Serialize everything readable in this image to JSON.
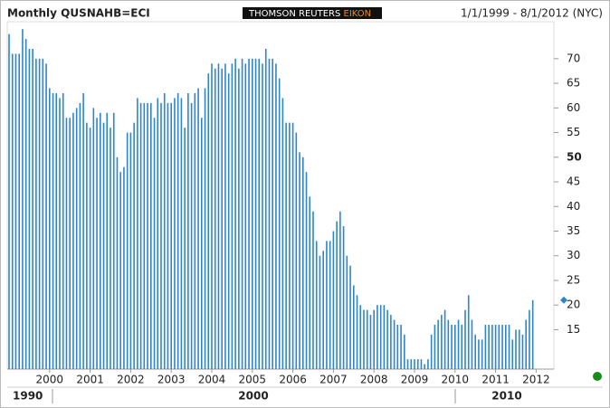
{
  "chart_data": {
    "type": "bar",
    "title": "Monthly QUSNAHB=ECI",
    "brand": [
      "THOMSON REUTERS ",
      "EIKON"
    ],
    "date_range": "1/1/1999 - 8/1/2012 (NYC)",
    "categories": [
      null,
      null,
      null,
      null,
      null,
      null,
      null,
      null,
      null,
      null,
      null,
      null,
      "2000",
      null,
      null,
      null,
      null,
      null,
      null,
      null,
      null,
      null,
      null,
      null,
      "2001",
      null,
      null,
      null,
      null,
      null,
      null,
      null,
      null,
      null,
      null,
      null,
      "2002",
      null,
      null,
      null,
      null,
      null,
      null,
      null,
      null,
      null,
      null,
      null,
      "2003",
      null,
      null,
      null,
      null,
      null,
      null,
      null,
      null,
      null,
      null,
      null,
      "2004",
      null,
      null,
      null,
      null,
      null,
      null,
      null,
      null,
      null,
      null,
      null,
      "2005",
      null,
      null,
      null,
      null,
      null,
      null,
      null,
      null,
      null,
      null,
      null,
      "2006",
      null,
      null,
      null,
      null,
      null,
      null,
      null,
      null,
      null,
      null,
      null,
      "2007",
      null,
      null,
      null,
      null,
      null,
      null,
      null,
      null,
      null,
      null,
      null,
      "2008",
      null,
      null,
      null,
      null,
      null,
      null,
      null,
      null,
      null,
      null,
      null,
      "2009",
      null,
      null,
      null,
      null,
      null,
      null,
      null,
      null,
      null,
      null,
      null,
      "2010",
      null,
      null,
      null,
      null,
      null,
      null,
      null,
      null,
      null,
      null,
      null,
      "2011",
      null,
      null,
      null,
      null,
      null,
      null,
      null,
      null,
      null,
      null,
      null,
      "2012"
    ],
    "values": [
      75,
      71,
      71,
      71,
      76,
      74,
      72,
      72,
      70,
      70,
      70,
      69,
      64,
      63,
      63,
      62,
      63,
      58,
      58,
      59,
      60,
      61,
      63,
      57,
      56,
      60,
      58,
      59,
      57,
      59,
      56,
      59,
      50,
      47,
      48,
      55,
      55,
      57,
      62,
      61,
      61,
      61,
      61,
      58,
      62,
      61,
      63,
      61,
      61,
      62,
      63,
      62,
      56,
      63,
      61,
      63,
      64,
      58,
      64,
      67,
      69,
      68,
      69,
      68,
      69,
      67,
      69,
      70,
      68,
      70,
      69,
      70,
      70,
      70,
      70,
      69,
      72,
      70,
      70,
      69,
      66,
      62,
      57,
      57,
      57,
      55,
      51,
      50,
      47,
      42,
      39,
      33,
      30,
      31,
      33,
      33,
      35,
      37,
      39,
      36,
      30,
      28,
      24,
      22,
      20,
      19,
      19,
      18,
      19,
      20,
      20,
      20,
      19,
      18,
      17,
      16,
      16,
      14,
      9,
      9,
      9,
      9,
      9,
      8,
      9,
      14,
      16,
      17,
      18,
      19,
      17,
      16,
      16,
      17,
      16,
      19,
      22,
      17,
      14,
      13,
      13,
      16,
      16,
      16,
      16,
      16,
      16,
      16,
      16,
      13,
      15,
      15,
      14,
      17,
      19,
      21,
      null
    ],
    "color": "#2e86c8",
    "ylim": [
      7,
      77.5
    ],
    "yticks": [
      15,
      20,
      25,
      30,
      35,
      40,
      45,
      50,
      55,
      60,
      65,
      70
    ],
    "decade_labels": [
      "1990",
      "2000",
      "2010"
    ]
  }
}
